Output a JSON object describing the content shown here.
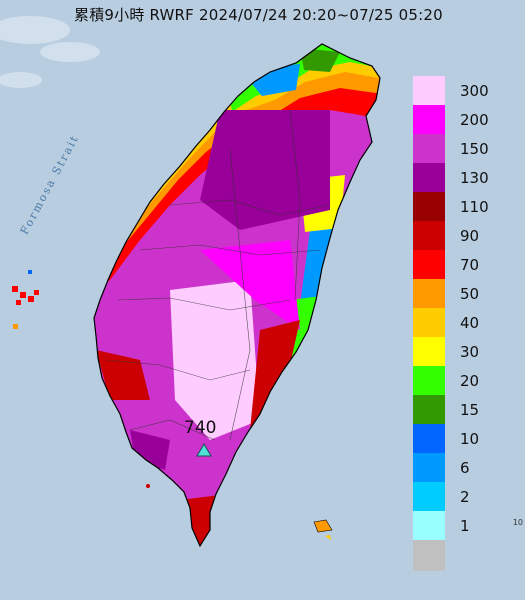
{
  "title": "累積9小時 RWRF 2024/07/24 20:20~07/25 05:20",
  "map": {
    "strait_label": "Formosa Strait",
    "peak_value": "740",
    "peak_marker_icon": "triangle-marker-icon"
  },
  "legend": {
    "items": [
      {
        "label": "300",
        "color": "#ffccff"
      },
      {
        "label": "200",
        "color": "#ff00ff"
      },
      {
        "label": "150",
        "color": "#cc33cc"
      },
      {
        "label": "130",
        "color": "#990099"
      },
      {
        "label": "110",
        "color": "#990000"
      },
      {
        "label": "90",
        "color": "#cc0000"
      },
      {
        "label": "70",
        "color": "#ff0000"
      },
      {
        "label": "50",
        "color": "#ff9900"
      },
      {
        "label": "40",
        "color": "#ffcc00"
      },
      {
        "label": "30",
        "color": "#ffff00"
      },
      {
        "label": "20",
        "color": "#33ff00"
      },
      {
        "label": "15",
        "color": "#339900"
      },
      {
        "label": "10",
        "color": "#0066ff"
      },
      {
        "label": "6",
        "color": "#0099ff"
      },
      {
        "label": "2",
        "color": "#00ccff"
      },
      {
        "label": "1",
        "color": "#99ffff"
      },
      {
        "label": "",
        "color": "#c0c0c0"
      }
    ]
  },
  "corner_text": "10"
}
